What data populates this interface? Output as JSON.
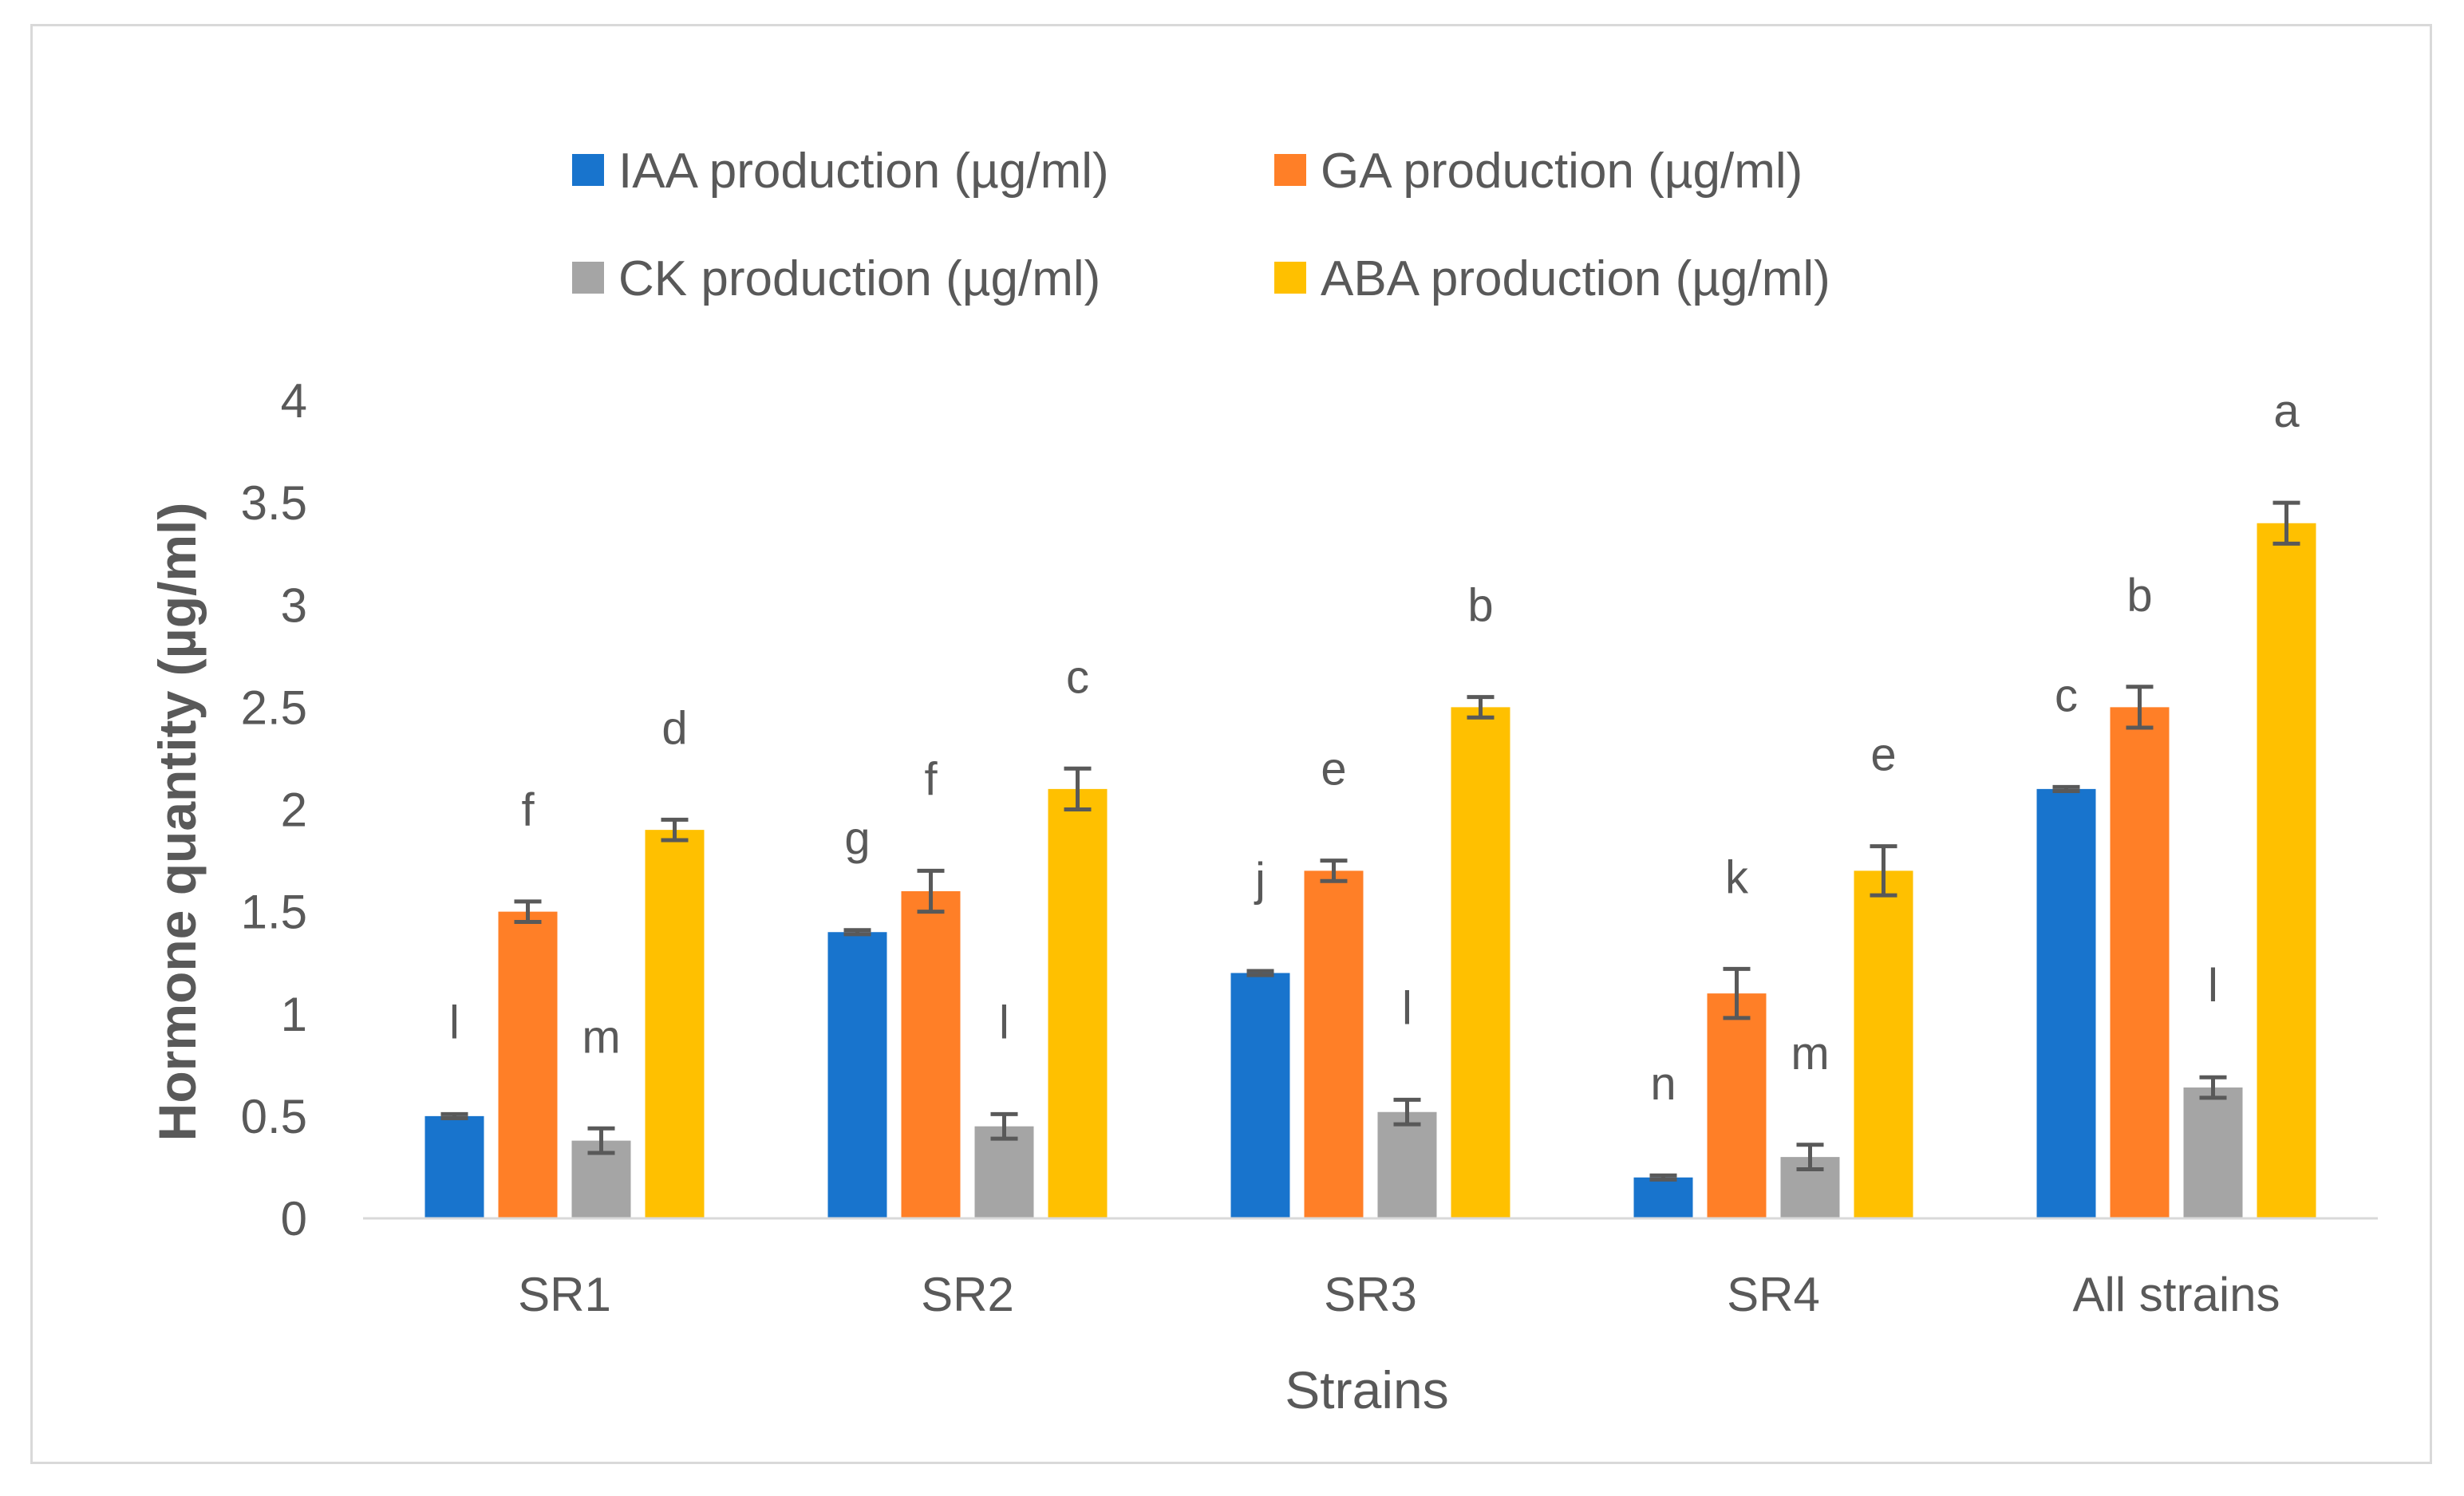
{
  "chart_data": {
    "type": "bar",
    "title": "",
    "xlabel": "Strains",
    "ylabel": "Hormone quantity (µg/ml)",
    "ylim": [
      0,
      4
    ],
    "yticks": [
      "0",
      "0.5",
      "1",
      "1.5",
      "2",
      "2.5",
      "3",
      "3.5",
      "4"
    ],
    "categories": [
      "SR1",
      "SR2",
      "SR3",
      "SR4",
      "All strains"
    ],
    "legend_position": "top",
    "series": [
      {
        "name": "IAA  production (µg/ml)",
        "color": "#1874CD",
        "values": [
          0.5,
          1.4,
          1.2,
          0.2,
          2.1
        ],
        "errors": [
          0.01,
          0.01,
          0.01,
          0.01,
          0.01
        ],
        "labels": [
          "l",
          "g",
          "j",
          "n",
          "c"
        ]
      },
      {
        "name": "GA  production (µg/ml)",
        "color": "#FF7F27",
        "values": [
          1.5,
          1.6,
          1.7,
          1.1,
          2.5
        ],
        "errors": [
          0.05,
          0.1,
          0.05,
          0.12,
          0.1
        ],
        "labels": [
          "f",
          "f",
          "e",
          "k",
          "b"
        ]
      },
      {
        "name": "CK  production (µg/ml)",
        "color": "#A5A5A5",
        "values": [
          0.38,
          0.45,
          0.52,
          0.3,
          0.64
        ],
        "errors": [
          0.06,
          0.06,
          0.06,
          0.06,
          0.05
        ],
        "labels": [
          "m",
          "l",
          "l",
          "m",
          "l"
        ]
      },
      {
        "name": "ABA  production (µg/ml)",
        "color": "#FFC000",
        "values": [
          1.9,
          2.1,
          2.5,
          1.7,
          3.4
        ],
        "errors": [
          0.05,
          0.1,
          0.05,
          0.12,
          0.1
        ],
        "labels": [
          "d",
          "c",
          "b",
          "e",
          "a"
        ]
      }
    ]
  }
}
